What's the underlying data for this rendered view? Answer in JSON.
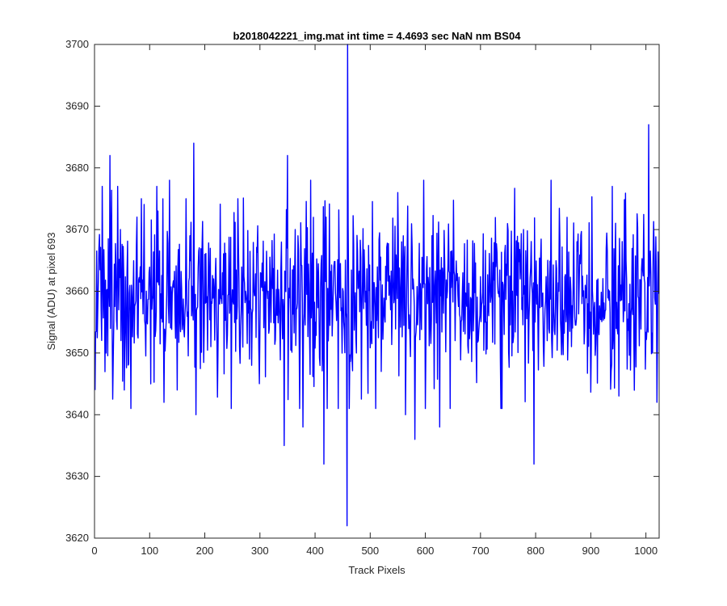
{
  "chart_data": {
    "type": "line",
    "title": "b2018042221_img.mat int time = 4.4693 sec  NaN nm BS04",
    "xlabel": "Track Pixels",
    "ylabel": "Signal (ADU) at pixel 693",
    "xlim": [
      0,
      1024
    ],
    "ylim": [
      3620,
      3700
    ],
    "xticks": [
      0,
      100,
      200,
      300,
      400,
      500,
      600,
      700,
      800,
      900,
      1000
    ],
    "yticks": [
      3620,
      3630,
      3640,
      3650,
      3660,
      3670,
      3680,
      3690,
      3700
    ],
    "grid": false,
    "legend": "none",
    "series_color": "#0000ff",
    "series": [
      {
        "x_start": 1,
        "x_step": 1,
        "count": 1024,
        "mean": 3659,
        "std": 7,
        "y_min_shown": 3622,
        "y_max_shown": 3700,
        "points": [
          [
            1,
            3644
          ],
          [
            8,
            3667
          ],
          [
            14,
            3677
          ],
          [
            21,
            3650
          ],
          [
            28,
            3682
          ],
          [
            35,
            3655
          ],
          [
            47,
            3670
          ],
          [
            54,
            3644
          ],
          [
            66,
            3641
          ],
          [
            85,
            3675
          ],
          [
            102,
            3645
          ],
          [
            115,
            3673
          ],
          [
            126,
            3642
          ],
          [
            136,
            3678
          ],
          [
            150,
            3644
          ],
          [
            165,
            3658
          ],
          [
            180,
            3684
          ],
          [
            184,
            3640
          ],
          [
            200,
            3666
          ],
          [
            216,
            3662
          ],
          [
            232,
            3663
          ],
          [
            246,
            3658
          ],
          [
            260,
            3675
          ],
          [
            274,
            3660
          ],
          [
            287,
            3657
          ],
          [
            301,
            3663
          ],
          [
            315,
            3660
          ],
          [
            329,
            3657
          ],
          [
            344,
            3635
          ],
          [
            350,
            3682
          ],
          [
            364,
            3670
          ],
          [
            378,
            3638
          ],
          [
            392,
            3678
          ],
          [
            401,
            3655
          ],
          [
            416,
            3632
          ],
          [
            420,
            3672
          ],
          [
            440,
            3658
          ],
          [
            458,
            3622
          ],
          [
            459,
            3700
          ],
          [
            475,
            3650
          ],
          [
            492,
            3660
          ],
          [
            506,
            3654
          ],
          [
            520,
            3647
          ],
          [
            537,
            3657
          ],
          [
            550,
            3676
          ],
          [
            564,
            3640
          ],
          [
            581,
            3636
          ],
          [
            597,
            3678
          ],
          [
            612,
            3669
          ],
          [
            626,
            3638
          ],
          [
            640,
            3660
          ],
          [
            654,
            3652
          ],
          [
            668,
            3663
          ],
          [
            682,
            3659
          ],
          [
            696,
            3652
          ],
          [
            711,
            3655
          ],
          [
            728,
            3664
          ],
          [
            743,
            3653
          ],
          [
            758,
            3660
          ],
          [
            772,
            3662
          ],
          [
            786,
            3661
          ],
          [
            797,
            3632
          ],
          [
            800,
            3660
          ],
          [
            814,
            3651
          ],
          [
            828,
            3678
          ],
          [
            842,
            3660
          ],
          [
            856,
            3657
          ],
          [
            870,
            3660
          ],
          [
            884,
            3658
          ],
          [
            898,
            3654
          ],
          [
            913,
            3662
          ],
          [
            927,
            3657
          ],
          [
            941,
            3653
          ],
          [
            955,
            3661
          ],
          [
            969,
            3658
          ],
          [
            983,
            3660
          ],
          [
            997,
            3662
          ],
          [
            1005,
            3687
          ],
          [
            1012,
            3650
          ],
          [
            1020,
            3642
          ],
          [
            1024,
            3660
          ]
        ]
      }
    ]
  }
}
